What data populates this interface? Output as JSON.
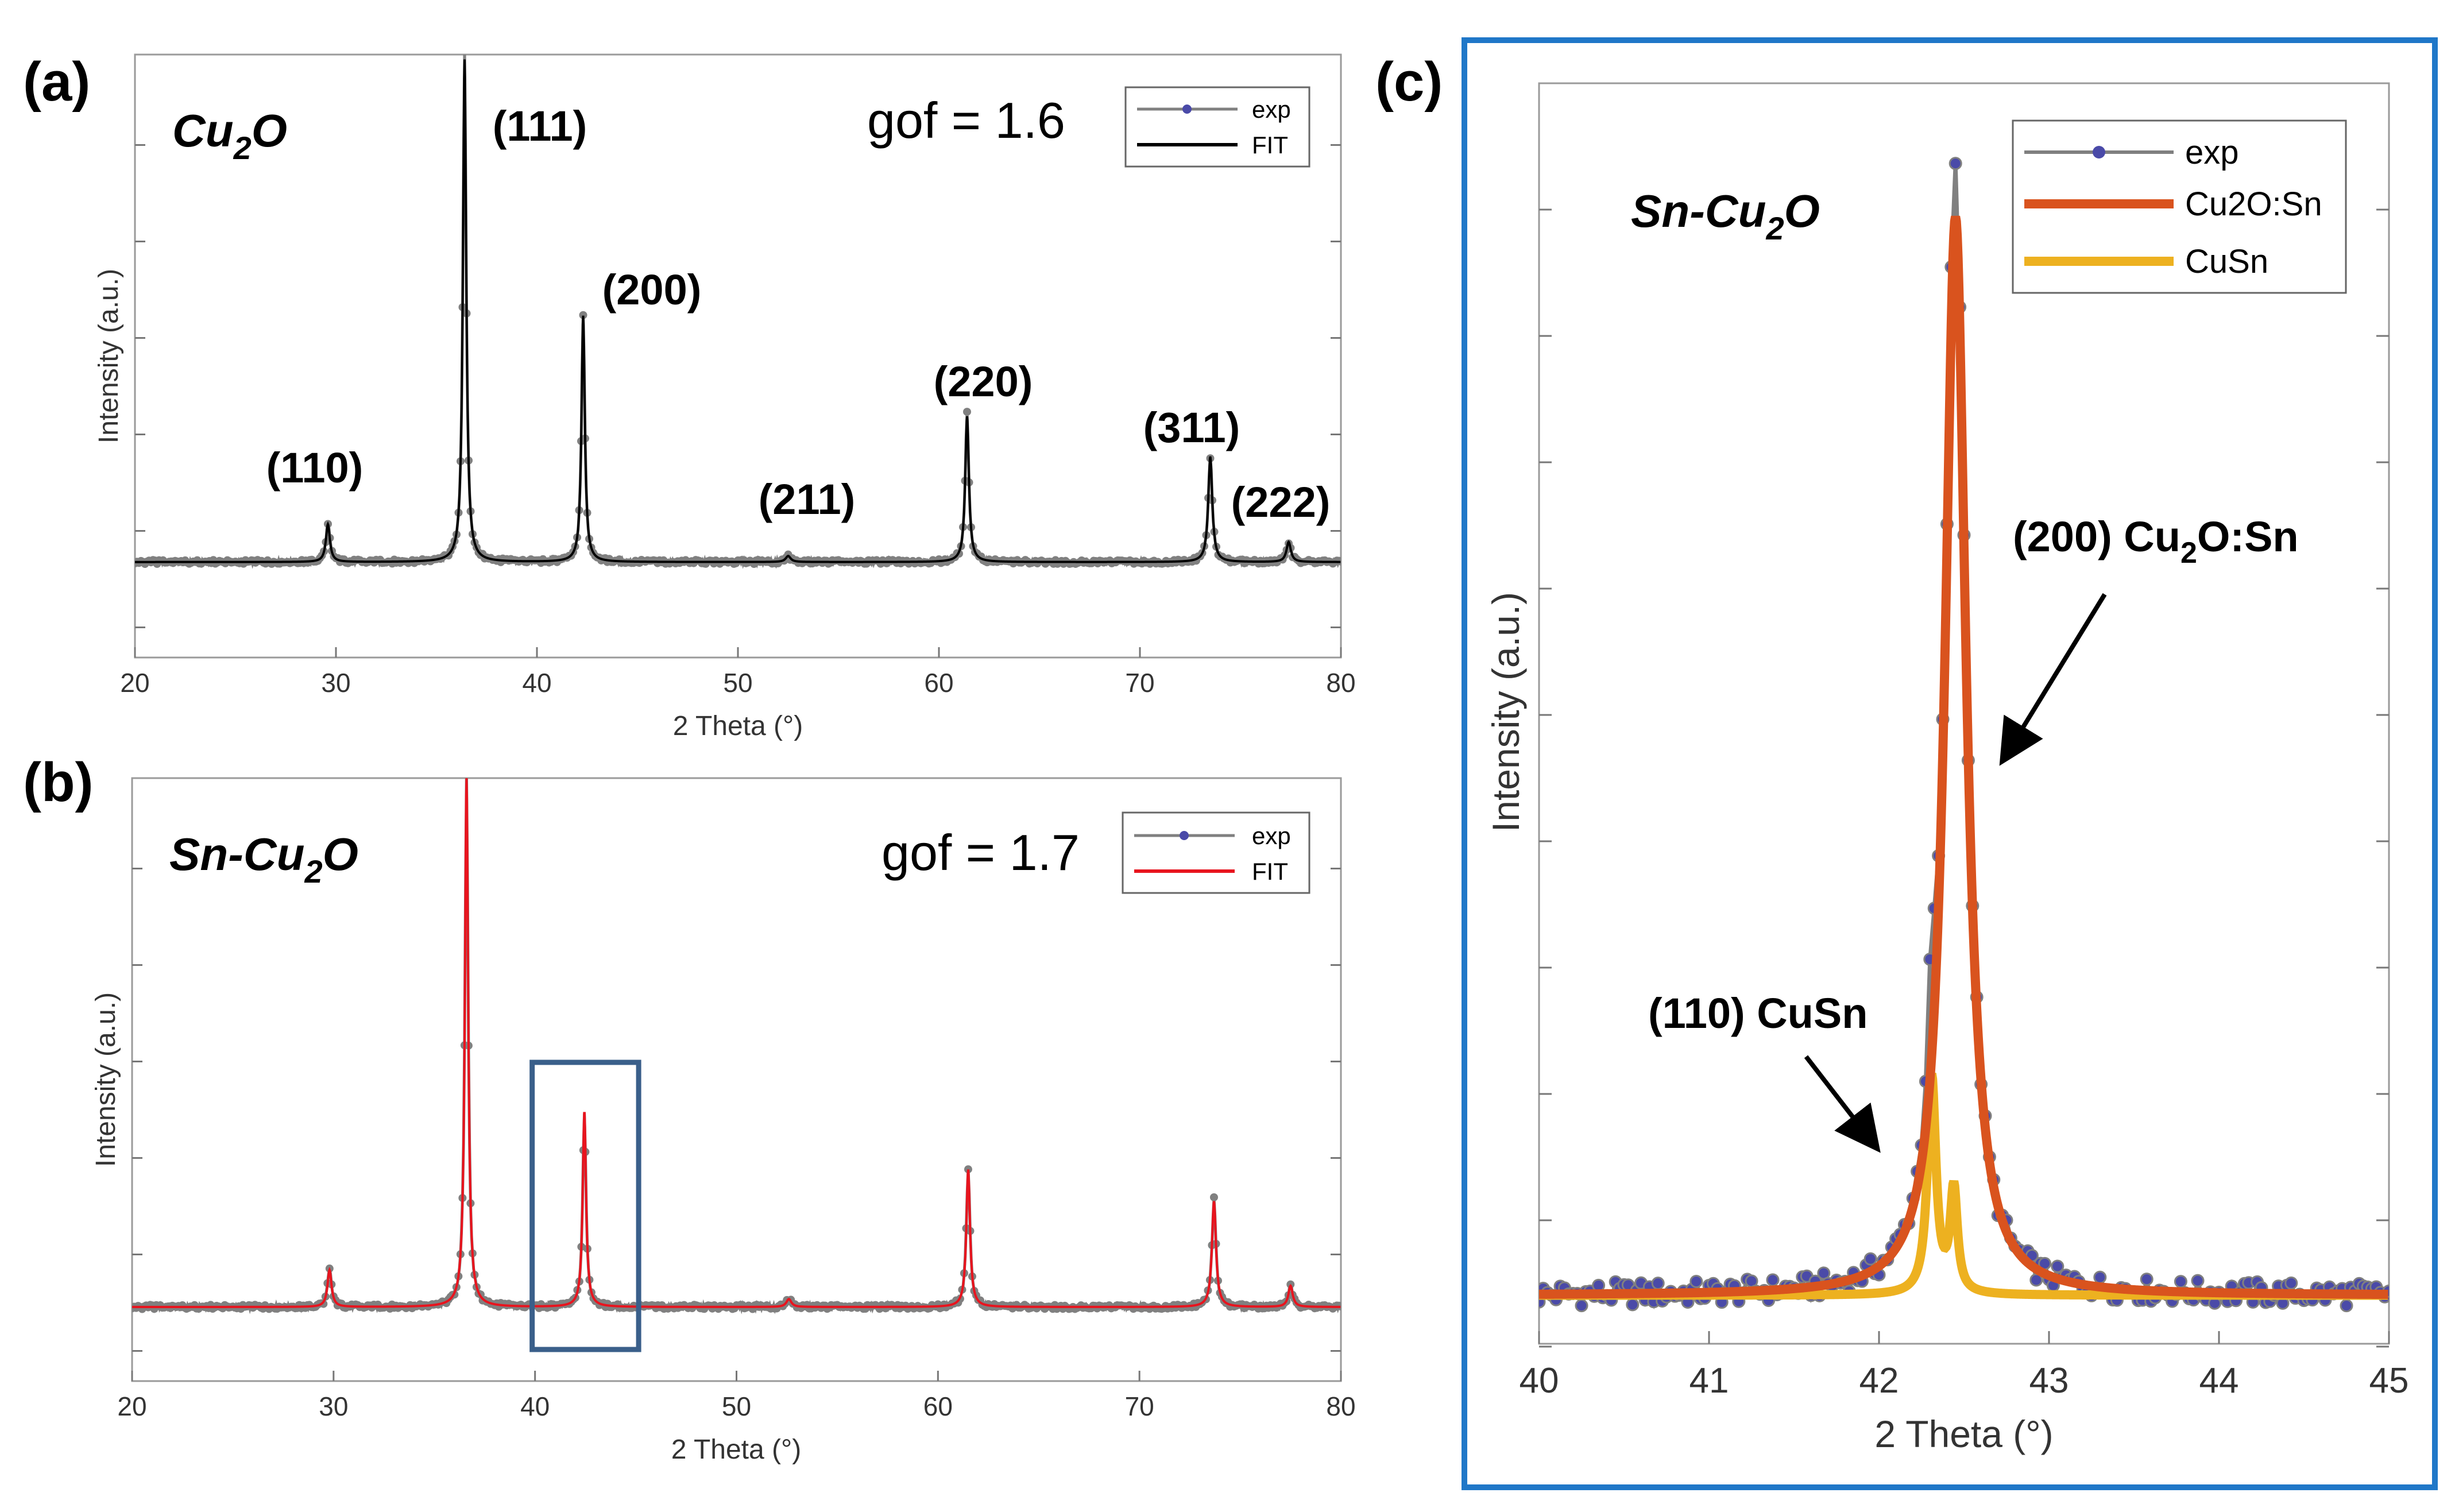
{
  "figure": {
    "panel_labels": [
      "(a)",
      "(b)",
      "(c)"
    ],
    "colors": {
      "exp_line": "#808080",
      "exp_marker": "#4a4aa8",
      "fit_a": "#000000",
      "fit_b": "#e8141e",
      "cu2o_sn": "#d9531e",
      "cusn": "#edb120",
      "highlight_box": "#3a5f8a",
      "panel_c_frame": "#1f77c8"
    }
  },
  "chart_data": [
    {
      "id": "a",
      "type": "line",
      "title": "",
      "sample_label": {
        "main": "Cu",
        "sub": "2",
        "tail": "O"
      },
      "gof_text": "gof = 1.6",
      "xlabel": "2 Theta (°)",
      "ylabel": "Intensity (a.u.)",
      "xlim": [
        20,
        80
      ],
      "xticks": [
        20,
        30,
        40,
        50,
        60,
        70,
        80
      ],
      "ylim": [
        -0.2,
        1.0
      ],
      "baseline": -0.01,
      "legend": {
        "position": "top-right",
        "entries": [
          "exp",
          "FIT"
        ]
      },
      "series": [
        {
          "name": "exp",
          "style": "markers+line"
        },
        {
          "name": "FIT",
          "style": "line"
        }
      ],
      "peaks": [
        {
          "hkl": "(110)",
          "x": 29.6,
          "h": 0.075,
          "w": 0.12
        },
        {
          "hkl": "(111)",
          "x": 36.4,
          "h": 1.0,
          "w": 0.1
        },
        {
          "hkl": "(200)",
          "x": 42.3,
          "h": 0.49,
          "w": 0.1
        },
        {
          "hkl": "(211)",
          "x": 52.5,
          "h": 0.012,
          "w": 0.15
        },
        {
          "hkl": "(220)",
          "x": 61.4,
          "h": 0.29,
          "w": 0.11
        },
        {
          "hkl": "(311)",
          "x": 73.5,
          "h": 0.21,
          "w": 0.12
        },
        {
          "hkl": "(222)",
          "x": 77.4,
          "h": 0.04,
          "w": 0.13
        }
      ]
    },
    {
      "id": "b",
      "type": "line",
      "title": "",
      "sample_label": {
        "main": "Sn-Cu",
        "sub": "2",
        "tail": "O"
      },
      "gof_text": "gof = 1.7",
      "xlabel": "2 Theta (°)",
      "ylabel": "Intensity (a.u.)",
      "xlim": [
        20,
        80
      ],
      "xticks": [
        20,
        30,
        40,
        50,
        60,
        70,
        80
      ],
      "ylim": [
        -0.14,
        1.0
      ],
      "baseline": 0.0,
      "legend": {
        "position": "top-right",
        "entries": [
          "exp",
          "FIT"
        ]
      },
      "highlight_range": [
        40,
        45
      ],
      "series": [
        {
          "name": "exp",
          "style": "markers+line"
        },
        {
          "name": "FIT",
          "style": "line"
        }
      ],
      "peaks": [
        {
          "x": 29.8,
          "h": 0.07,
          "w": 0.12
        },
        {
          "x": 36.6,
          "h": 1.0,
          "w": 0.1
        },
        {
          "x": 42.45,
          "h": 0.37,
          "w": 0.1
        },
        {
          "x": 52.6,
          "h": 0.015,
          "w": 0.15
        },
        {
          "x": 61.5,
          "h": 0.26,
          "w": 0.11
        },
        {
          "x": 73.7,
          "h": 0.2,
          "w": 0.12
        },
        {
          "x": 77.5,
          "h": 0.04,
          "w": 0.13
        }
      ]
    },
    {
      "id": "c",
      "type": "line",
      "title": "",
      "sample_label": {
        "main": "Sn-Cu",
        "sub": "2",
        "tail": "O"
      },
      "xlabel": "2 Theta (°)",
      "ylabel": "Intensity (a.u.)",
      "xlim": [
        40,
        45
      ],
      "xticks": [
        40,
        41,
        42,
        43,
        44,
        45
      ],
      "ylim": [
        -0.04,
        1.0
      ],
      "legend": {
        "position": "top-right",
        "entries": [
          "exp",
          "Cu2O:Sn",
          "CuSn"
        ]
      },
      "series": [
        {
          "name": "exp",
          "style": "markers+line"
        },
        {
          "name": "Cu2O:Sn",
          "style": "line",
          "x0": 42.45,
          "h": 0.89,
          "w": 0.075
        },
        {
          "name": "CuSn",
          "style": "line",
          "x0": 42.31,
          "h": 0.18,
          "w": 0.03,
          "x1": 42.44,
          "h1": 0.085
        }
      ],
      "annotations": [
        {
          "text_main": "(200) Cu",
          "sub": "2",
          "text_tail": "O:Sn"
        },
        {
          "text": "(110) CuSn"
        }
      ]
    }
  ]
}
